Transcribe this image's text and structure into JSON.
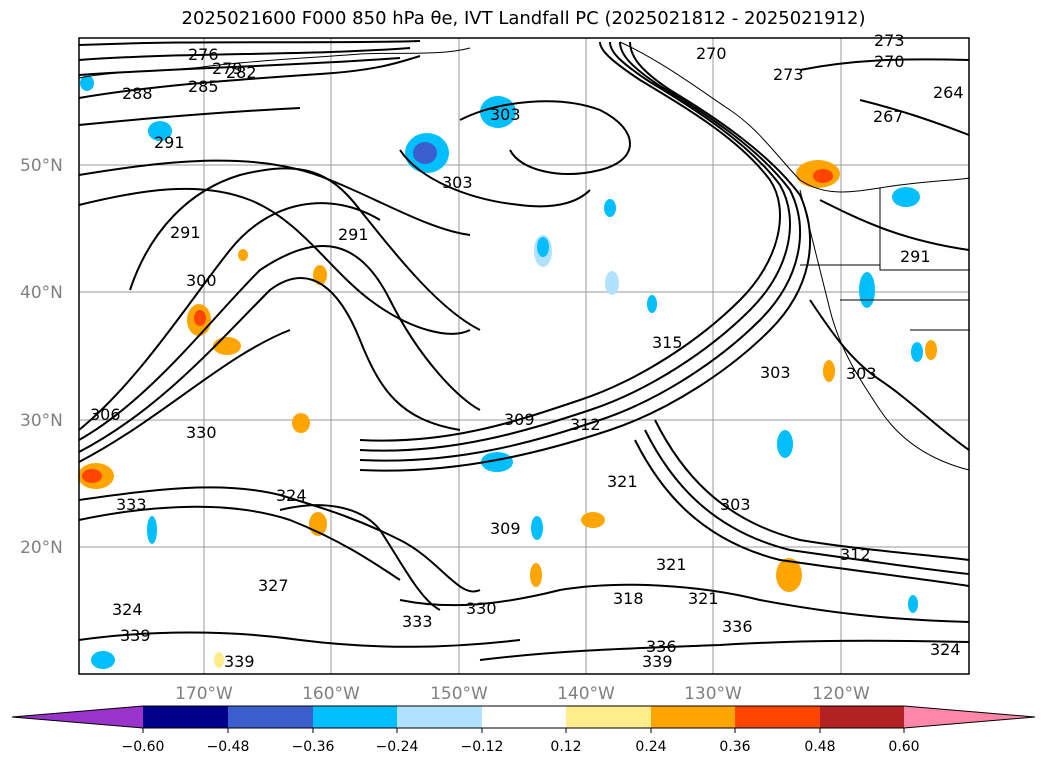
{
  "title": "2025021600 F000 850 hPa θe, IVT Landfall PC (2025021812 - 2025021912)",
  "map": {
    "lat_labels": [
      "50°N",
      "40°N",
      "30°N",
      "20°N"
    ],
    "lon_labels": [
      "170°W",
      "160°W",
      "150°W",
      "140°W",
      "130°W",
      "120°W"
    ],
    "contour_labels": [
      "273",
      "276",
      "279",
      "282",
      "285",
      "288",
      "291",
      "291",
      "291",
      "300",
      "303",
      "303",
      "306",
      "309",
      "312",
      "315",
      "318",
      "321",
      "321",
      "324",
      "327",
      "330",
      "330",
      "333",
      "333",
      "336",
      "339",
      "339",
      "270",
      "270",
      "273",
      "273",
      "267",
      "264",
      "264",
      "306",
      "303",
      "303",
      "312",
      "318",
      "321",
      "324"
    ]
  },
  "colorbar": {
    "ticks": [
      "−0.60",
      "−0.48",
      "−0.36",
      "−0.24",
      "−0.12",
      "0.12",
      "0.24",
      "0.36",
      "0.48",
      "0.60"
    ],
    "colors": [
      "#9933cc",
      "#00008b",
      "#3a5fcd",
      "#00bfff",
      "#b0e2ff",
      "#ffffff",
      "#ffec8b",
      "#ffa500",
      "#ff4500",
      "#b22222",
      "#ff88aa"
    ]
  }
}
